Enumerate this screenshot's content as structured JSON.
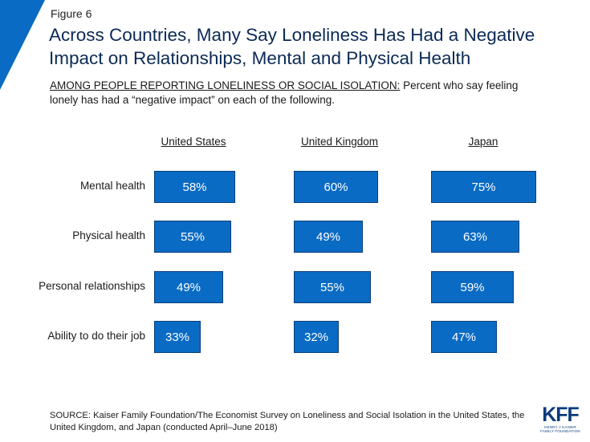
{
  "figure_label": "Figure 6",
  "title": "Across Countries, Many Say Loneliness Has Had a Negative Impact on Relationships, Mental and Physical Health",
  "subtitle_prefix": "AMONG PEOPLE REPORTING LONELINESS OR SOCIAL ISOLATION:",
  "subtitle_rest": " Percent who say feeling lonely has had a “negative impact” on each of the following.",
  "source": "SOURCE: Kaiser Family Foundation/The Economist Survey on Loneliness and Social Isolation in the United States, the United Kingdom, and Japan (conducted April–June 2018)",
  "logo": {
    "text": "KFF",
    "line1": "HENRY J KAISER",
    "line2": "FAMILY FOUNDATION"
  },
  "colors": {
    "bar": "#0a6bc4",
    "bar_border": "#0a3f7a",
    "title": "#0b2a55",
    "corner": "#0a6bc4"
  },
  "chart_data": {
    "type": "bar",
    "orientation": "horizontal",
    "categories": [
      "Mental health",
      "Physical health",
      "Personal relationships",
      "Ability to do their job"
    ],
    "series": [
      {
        "name": "United States",
        "values": [
          58,
          55,
          49,
          33
        ]
      },
      {
        "name": "United Kingdom",
        "values": [
          60,
          49,
          55,
          32
        ]
      },
      {
        "name": "Japan",
        "values": [
          75,
          63,
          59,
          47
        ]
      }
    ],
    "value_suffix": "%",
    "xlim": [
      0,
      100
    ],
    "grid": false
  }
}
